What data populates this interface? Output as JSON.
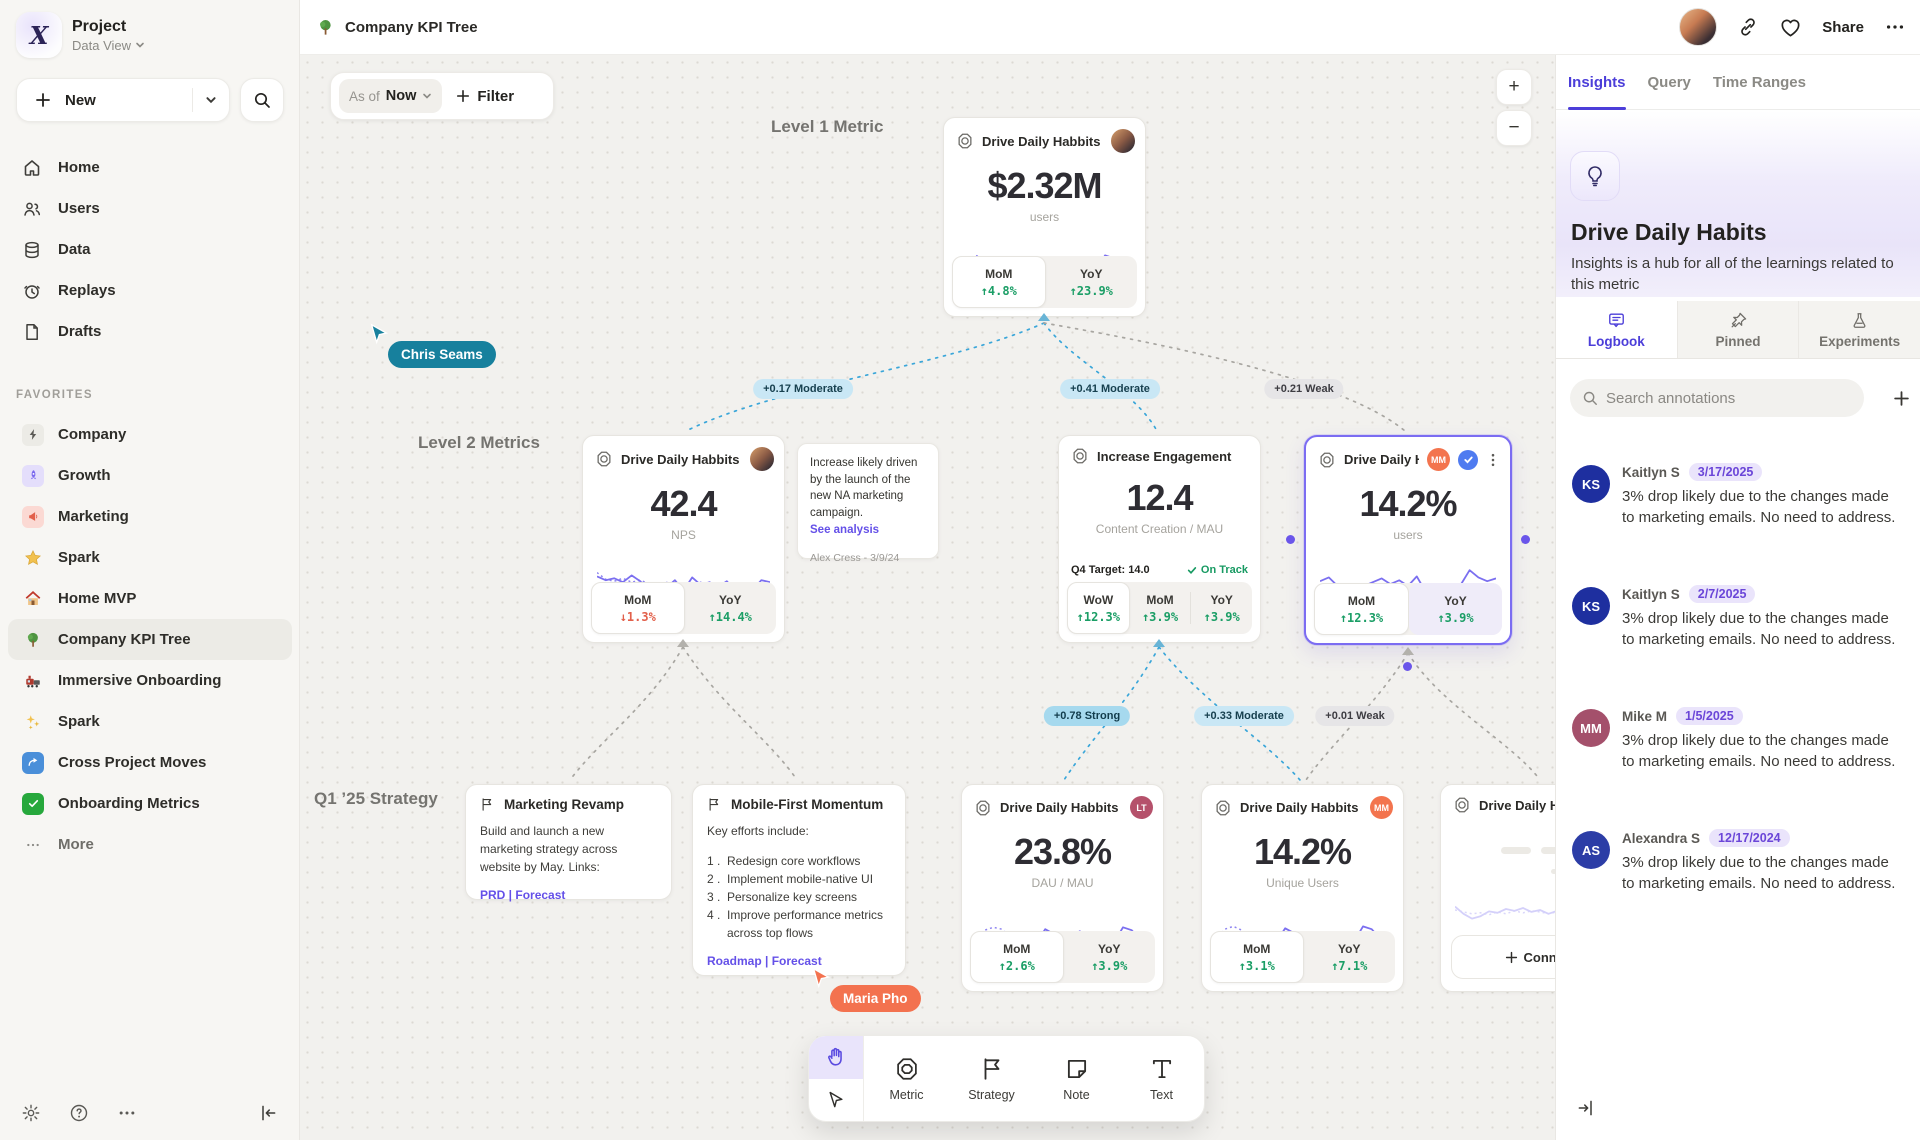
{
  "sidebar": {
    "project_name": "Project",
    "project_view": "Data View",
    "new_label": "New",
    "nav": [
      {
        "label": "Home"
      },
      {
        "label": "Users"
      },
      {
        "label": "Data"
      },
      {
        "label": "Replays"
      },
      {
        "label": "Drafts"
      }
    ],
    "favorites_title": "FAVORITES",
    "favorites": [
      {
        "label": "Company"
      },
      {
        "label": "Growth"
      },
      {
        "label": "Marketing"
      },
      {
        "label": "Spark"
      },
      {
        "label": "Home MVP"
      },
      {
        "label": "Company KPI Tree"
      },
      {
        "label": "Immersive Onboarding"
      },
      {
        "label": "Spark"
      },
      {
        "label": "Cross Project Moves"
      },
      {
        "label": "Onboarding Metrics"
      },
      {
        "label": "More"
      }
    ]
  },
  "header": {
    "title": "Company KPI Tree",
    "share_label": "Share"
  },
  "canvas": {
    "asof_label": "As of",
    "asof_value": "Now",
    "filter_label": "Filter",
    "zoom_in": "+",
    "zoom_out": "−",
    "section_labels": {
      "level1": "Level 1 Metric",
      "level2": "Level 2 Metrics",
      "strategy": "Q1 ’25 Strategy"
    },
    "cursors": {
      "chris": "Chris Seams",
      "maria": "Maria Pho"
    },
    "cursor_colors": {
      "chris": "#17809d",
      "maria": "#f3724f"
    },
    "edges": [
      {
        "text": "+0.17 Moderate",
        "tone": "moderate"
      },
      {
        "text": "+0.41 Moderate",
        "tone": "moderate"
      },
      {
        "text": "+0.21 Weak",
        "tone": "weak"
      },
      {
        "text": "+0.78 Strong",
        "tone": "strong"
      },
      {
        "text": "+0.33 Moderate",
        "tone": "moderate"
      },
      {
        "text": "+0.01 Weak",
        "tone": "weak"
      }
    ],
    "cards": {
      "level1": {
        "title": "Drive Daily Habbits",
        "value": "$2.32M",
        "unit": "users",
        "stats": [
          {
            "label": "MoM",
            "delta": "↑4.8%",
            "dir": "up"
          },
          {
            "label": "YoY",
            "delta": "↑23.9%",
            "dir": "up"
          }
        ]
      },
      "nps": {
        "title": "Drive Daily Habbits",
        "value": "42.4",
        "unit": "NPS",
        "stats": [
          {
            "label": "MoM",
            "delta": "↓1.3%",
            "dir": "down"
          },
          {
            "label": "YoY",
            "delta": "↑14.4%",
            "dir": "up"
          }
        ]
      },
      "engagement": {
        "title": "Increase Engagement",
        "value": "12.4",
        "unit": "Content Creation / MAU",
        "target_label": "Q4 Target: 14.0",
        "status": "On Track",
        "progress_width": "82%",
        "marker_left": "86%",
        "stats": [
          {
            "label": "WoW",
            "delta": "↑12.3%",
            "dir": "up"
          },
          {
            "label": "MoM",
            "delta": "↑3.9%",
            "dir": "up"
          },
          {
            "label": "YoY",
            "delta": "↑3.9%",
            "dir": "up"
          }
        ]
      },
      "selected": {
        "title": "Drive Daily Habb..",
        "badge": "MM",
        "badge_color": "#f3744e",
        "value": "14.2%",
        "unit": "users",
        "stats": [
          {
            "label": "MoM",
            "delta": "↑12.3%",
            "dir": "up"
          },
          {
            "label": "YoY",
            "delta": "↑3.9%",
            "dir": "up"
          }
        ]
      },
      "dau": {
        "title": "Drive Daily Habbits",
        "badge": "LT",
        "badge_color": "#b5516b",
        "value": "23.8%",
        "unit": "DAU / MAU",
        "stats": [
          {
            "label": "MoM",
            "delta": "↑2.6%",
            "dir": "up"
          },
          {
            "label": "YoY",
            "delta": "↑3.9%",
            "dir": "up"
          }
        ]
      },
      "unique": {
        "title": "Drive Daily Habbits",
        "badge": "MM",
        "badge_color": "#f3744e",
        "value": "14.2%",
        "unit": "Unique Users",
        "stats": [
          {
            "label": "MoM",
            "delta": "↑3.1%",
            "dir": "up"
          },
          {
            "label": "YoY",
            "delta": "↑7.1%",
            "dir": "up"
          }
        ]
      },
      "ghost": {
        "title": "Drive Daily Habbits",
        "connect_label": "Connect"
      }
    },
    "note": {
      "text": "Increase likely driven by the launch of the new NA marketing campaign.",
      "link": "See analysis",
      "author": "Alex Cress - 3/9/24"
    },
    "strategies": [
      {
        "title": "Marketing Revamp",
        "body": "Build and launch a new marketing strategy across website by May. Links:",
        "links": "PRD | Forecast"
      },
      {
        "title": "Mobile-First Momentum",
        "intro": "Key efforts include:",
        "items": [
          "Redesign core workflows",
          "Implement mobile-native UI",
          "Personalize key screens",
          "Improve performance metrics across top flows"
        ],
        "links": "Roadmap | Forecast"
      }
    ]
  },
  "toolbar": {
    "tools": [
      {
        "label": "Metric"
      },
      {
        "label": "Strategy"
      },
      {
        "label": "Note"
      },
      {
        "label": "Text"
      }
    ]
  },
  "panel": {
    "tabs": [
      {
        "label": "Insights"
      },
      {
        "label": "Query"
      },
      {
        "label": "Time Ranges"
      }
    ],
    "title": "Drive Daily Habits",
    "description": "Insights is a hub for all of the learnings related to this metric",
    "subtabs": [
      {
        "label": "Logbook"
      },
      {
        "label": "Pinned"
      },
      {
        "label": "Experiments"
      }
    ],
    "search_placeholder": "Search annotations",
    "annotations": [
      {
        "initials": "KS",
        "name": "Kaitlyn S",
        "date": "3/17/2025",
        "color": "#1e2f9f",
        "text": "3% drop likely due to the changes made to marketing emails. No need to address."
      },
      {
        "initials": "KS",
        "name": "Kaitlyn S",
        "date": "2/7/2025",
        "color": "#1e2f9f",
        "text": "3% drop likely due to the changes made to marketing emails. No need to address."
      },
      {
        "initials": "MM",
        "name": "Mike M",
        "date": "1/5/2025",
        "color": "#a4506b",
        "text": "3% drop likely due to the changes made to marketing emails. No need to address."
      },
      {
        "initials": "AS",
        "name": "Alexandra S",
        "date": "12/17/2024",
        "color": "#2c3da6",
        "text": "3% drop likely due to the changes made to marketing emails. No need to address."
      }
    ]
  },
  "sparklines": {
    "level1": {
      "solid": [
        28,
        40,
        22,
        18,
        42,
        50,
        38,
        35,
        60,
        52,
        28,
        45,
        60,
        30,
        50,
        40,
        36,
        68,
        62,
        40,
        48
      ],
      "dotted": [
        34,
        58,
        68,
        62,
        44,
        40,
        50,
        44,
        38,
        48,
        42,
        36,
        52,
        46,
        34,
        28,
        22,
        30,
        46,
        52,
        48
      ]
    },
    "nps": {
      "solid": [
        70,
        62,
        66,
        58,
        72,
        60,
        38,
        55,
        46,
        62,
        40,
        68,
        52,
        58,
        48,
        60,
        40,
        28,
        42,
        62,
        58
      ],
      "dotted": [
        78,
        64,
        60,
        66,
        58,
        62,
        55,
        50,
        58,
        52,
        56,
        50,
        58,
        52,
        48,
        44,
        46,
        48,
        50,
        52,
        56
      ]
    },
    "selected": {
      "solid": [
        62,
        70,
        52,
        40,
        48,
        52,
        60,
        68,
        56,
        64,
        52,
        72,
        40,
        50,
        36,
        46,
        55,
        85,
        70,
        62,
        68
      ],
      "dotted": [
        40,
        42,
        38,
        44,
        36,
        46,
        42,
        48,
        44,
        50,
        46,
        40,
        48,
        42,
        46,
        52,
        56,
        48,
        42,
        38,
        58
      ]
    },
    "dau": {
      "solid": [
        30,
        42,
        24,
        18,
        44,
        50,
        38,
        34,
        62,
        52,
        28,
        46,
        58,
        32,
        50,
        40,
        36,
        66,
        60,
        40,
        46
      ],
      "dotted": [
        36,
        60,
        66,
        62,
        44,
        40,
        52,
        44,
        38,
        48,
        42,
        36,
        54,
        46,
        34,
        28,
        24,
        32,
        44,
        50,
        46
      ]
    },
    "unique": {
      "solid": [
        32,
        40,
        26,
        20,
        46,
        50,
        40,
        36,
        64,
        54,
        30,
        46,
        56,
        34,
        52,
        42,
        38,
        68,
        62,
        42,
        48
      ],
      "dotted": [
        38,
        62,
        68,
        60,
        46,
        42,
        52,
        46,
        40,
        50,
        44,
        38,
        56,
        48,
        36,
        30,
        26,
        34,
        46,
        52,
        48
      ]
    },
    "ghost": {
      "solid": [
        55,
        40,
        30,
        35,
        45,
        42,
        50,
        46,
        52,
        44,
        48,
        40,
        46,
        52,
        44,
        40,
        46,
        50,
        44,
        48,
        46
      ],
      "dotted": [
        48,
        44,
        40,
        42,
        38,
        44,
        40,
        46,
        42,
        46,
        44,
        40,
        44,
        42,
        40,
        38,
        42,
        44,
        42,
        44,
        42
      ]
    }
  }
}
